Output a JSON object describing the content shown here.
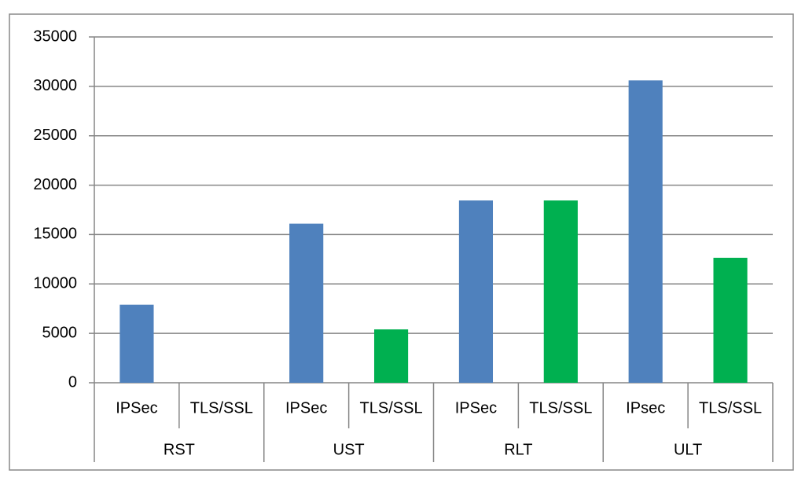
{
  "chart_data": {
    "type": "bar",
    "categories": [
      "IPSec",
      "TLS/SSL",
      "IPSec",
      "TLS/SSL",
      "IPSec",
      "TLS/SSL",
      "IPsec",
      "TLS/SSL"
    ],
    "groups": [
      "RST",
      "UST",
      "RLT",
      "ULT"
    ],
    "values": [
      7900,
      0,
      16100,
      5400,
      18450,
      18450,
      30600,
      12650
    ],
    "colors": [
      "#4f81bd",
      "#00b050",
      "#4f81bd",
      "#00b050",
      "#4f81bd",
      "#00b050",
      "#4f81bd",
      "#00b050"
    ],
    "ylim": [
      0,
      35000
    ],
    "yticks": [
      0,
      5000,
      10000,
      15000,
      20000,
      25000,
      30000,
      35000
    ],
    "grid": true
  }
}
